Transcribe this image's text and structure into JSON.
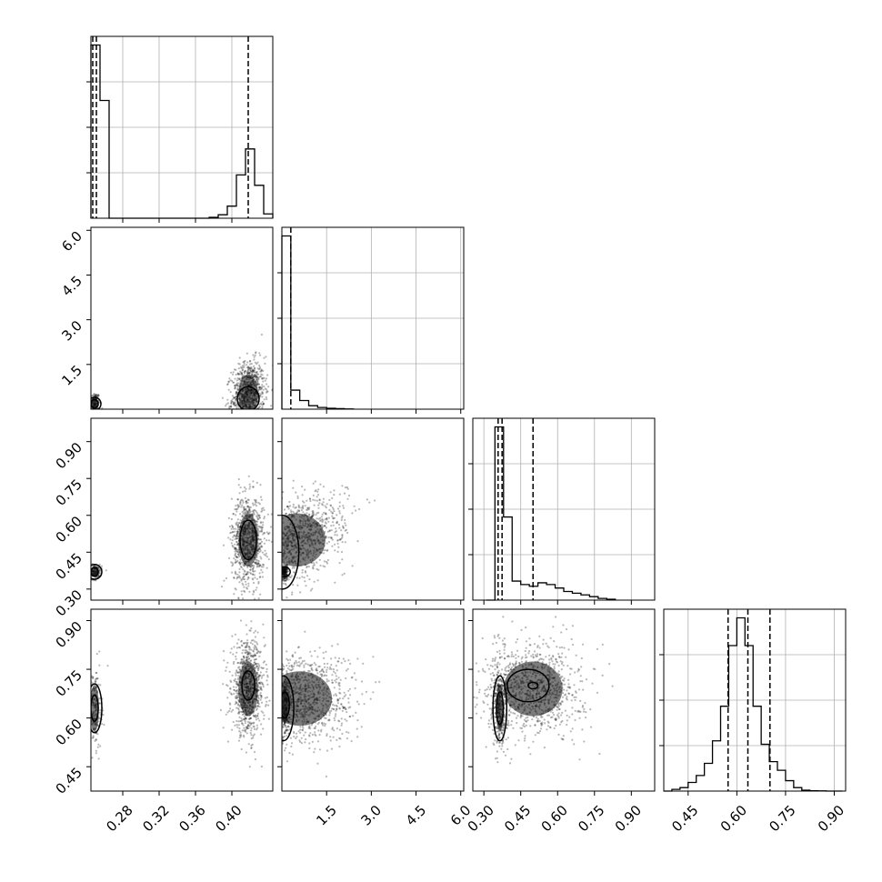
{
  "chart_data": {
    "type": "corner",
    "title": "",
    "parameters": [
      {
        "label": "",
        "range": [
          0.245,
          0.445
        ],
        "ticks": [
          "0.28",
          "0.32",
          "0.36",
          "0.40"
        ],
        "tick_values": [
          0.28,
          0.32,
          0.36,
          0.4
        ],
        "ytick_labels": []
      },
      {
        "label": "",
        "range": [
          0.0,
          6.1
        ],
        "ticks": [
          "1.5",
          "3.0",
          "4.5",
          "6.0"
        ],
        "tick_values": [
          1.5,
          3.0,
          4.5,
          6.0
        ],
        "ytick_labels": [
          "1.5",
          "3.0",
          "4.5",
          "6.0"
        ]
      },
      {
        "label": "",
        "range": [
          0.255,
          0.995
        ],
        "ticks": [
          "0.30",
          "0.45",
          "0.60",
          "0.75",
          "0.90"
        ],
        "tick_values": [
          0.3,
          0.45,
          0.6,
          0.75,
          0.9
        ],
        "ytick_labels": [
          "0.30",
          "0.45",
          "0.60",
          "0.75",
          "0.90"
        ]
      },
      {
        "label": "",
        "range": [
          0.375,
          0.935
        ],
        "ticks": [
          "0.45",
          "0.60",
          "0.75",
          "0.90"
        ],
        "tick_values": [
          0.45,
          0.6,
          0.75,
          0.9
        ],
        "ytick_labels": [
          "0.45",
          "0.60",
          "0.75",
          "0.90"
        ]
      }
    ],
    "histograms": [
      {
        "bin_edges": [
          0.245,
          0.255,
          0.265,
          0.275,
          0.285,
          0.295,
          0.305,
          0.315,
          0.325,
          0.335,
          0.345,
          0.355,
          0.365,
          0.375,
          0.385,
          0.395,
          0.405,
          0.415,
          0.425,
          0.435,
          0.445
        ],
        "counts": [
          1.0,
          0.68,
          0.0,
          0.0,
          0.0,
          0.0,
          0.0,
          0.0,
          0.0,
          0.0,
          0.0,
          0.0,
          0.0,
          0.005,
          0.02,
          0.07,
          0.25,
          0.4,
          0.19,
          0.025
        ],
        "quantiles": [
          0.247,
          0.251,
          0.418
        ],
        "grid": true
      },
      {
        "bin_edges": [
          0.0,
          0.3,
          0.6,
          0.9,
          1.2,
          1.5,
          1.8,
          2.1,
          2.4
        ],
        "counts": [
          1.0,
          0.11,
          0.05,
          0.02,
          0.01,
          0.005,
          0.003,
          0.001
        ],
        "quantiles": [
          0.3
        ],
        "grid": true
      },
      {
        "bin_edges": [
          0.31,
          0.345,
          0.38,
          0.415,
          0.45,
          0.485,
          0.52,
          0.555,
          0.59,
          0.625,
          0.66,
          0.695,
          0.73,
          0.765,
          0.8,
          0.835
        ],
        "counts": [
          0.0,
          1.0,
          0.48,
          0.11,
          0.09,
          0.08,
          0.1,
          0.09,
          0.07,
          0.05,
          0.04,
          0.03,
          0.02,
          0.01,
          0.005
        ],
        "quantiles": [
          0.358,
          0.374,
          0.5
        ],
        "grid": true
      },
      {
        "bin_edges": [
          0.375,
          0.4,
          0.425,
          0.45,
          0.475,
          0.5,
          0.525,
          0.55,
          0.575,
          0.6,
          0.625,
          0.65,
          0.675,
          0.7,
          0.725,
          0.75,
          0.775,
          0.8,
          0.825,
          0.85,
          0.875,
          0.9,
          0.925
        ],
        "counts": [
          0.0,
          0.01,
          0.02,
          0.05,
          0.09,
          0.16,
          0.29,
          0.49,
          0.84,
          1.0,
          0.84,
          0.49,
          0.27,
          0.17,
          0.12,
          0.06,
          0.02,
          0.005,
          0.002,
          0.001,
          0.0,
          0.0
        ],
        "quantiles": [
          0.573,
          0.634,
          0.702
        ],
        "grid": true
      }
    ],
    "pairs": [
      {
        "x": 0,
        "y": 1,
        "clusters": [
          {
            "cx": 0.249,
            "cy": 0.18,
            "sx": 0.003,
            "sy": 0.2,
            "n": 180,
            "rho": 0
          },
          {
            "cx": 0.418,
            "cy": 0.5,
            "sx": 0.009,
            "sy": 0.55,
            "n": 900,
            "rho": 0.15
          }
        ],
        "contours": [
          {
            "cx": 0.249,
            "cy": 0.18,
            "rx": 0.004,
            "ry": 0.14
          },
          {
            "cx": 0.249,
            "cy": 0.18,
            "rx": 0.007,
            "ry": 0.22
          },
          {
            "cx": 0.418,
            "cy": 0.35,
            "rx": 0.012,
            "ry": 0.4
          }
        ]
      },
      {
        "x": 0,
        "y": 2,
        "clusters": [
          {
            "cx": 0.249,
            "cy": 0.37,
            "sx": 0.004,
            "sy": 0.015,
            "n": 180,
            "rho": 0
          },
          {
            "cx": 0.418,
            "cy": 0.5,
            "sx": 0.009,
            "sy": 0.09,
            "n": 900,
            "rho": 0
          }
        ],
        "contours": [
          {
            "cx": 0.249,
            "cy": 0.37,
            "rx": 0.004,
            "ry": 0.018
          },
          {
            "cx": 0.249,
            "cy": 0.37,
            "rx": 0.008,
            "ry": 0.03
          },
          {
            "cx": 0.418,
            "cy": 0.5,
            "rx": 0.009,
            "ry": 0.08
          }
        ]
      },
      {
        "x": 0,
        "y": 3,
        "clusters": [
          {
            "cx": 0.249,
            "cy": 0.63,
            "sx": 0.004,
            "sy": 0.06,
            "n": 220,
            "rho": 0
          },
          {
            "cx": 0.418,
            "cy": 0.69,
            "sx": 0.009,
            "sy": 0.07,
            "n": 900,
            "rho": 0
          }
        ],
        "contours": [
          {
            "cx": 0.249,
            "cy": 0.63,
            "rx": 0.004,
            "ry": 0.04
          },
          {
            "cx": 0.249,
            "cy": 0.63,
            "rx": 0.008,
            "ry": 0.075
          },
          {
            "cx": 0.418,
            "cy": 0.7,
            "rx": 0.007,
            "ry": 0.045
          }
        ]
      },
      {
        "x": 1,
        "y": 2,
        "clusters": [
          {
            "cx": 0.08,
            "cy": 0.37,
            "sx": 0.06,
            "sy": 0.015,
            "n": 200,
            "rho": 0
          },
          {
            "cx": 0.5,
            "cy": 0.5,
            "sx": 0.8,
            "sy": 0.09,
            "n": 1100,
            "rho": 0.45
          }
        ],
        "contours": [
          {
            "cx": 0.02,
            "cy": 0.45,
            "rx": 0.55,
            "ry": 0.15
          },
          {
            "cx": 0.08,
            "cy": 0.37,
            "rx": 0.2,
            "ry": 0.02
          }
        ]
      },
      {
        "x": 1,
        "y": 3,
        "clusters": [
          {
            "cx": 0.1,
            "cy": 0.64,
            "sx": 0.08,
            "sy": 0.05,
            "n": 300,
            "rho": 0
          },
          {
            "cx": 0.6,
            "cy": 0.66,
            "sx": 0.9,
            "sy": 0.07,
            "n": 1100,
            "rho": 0
          }
        ],
        "contours": [
          {
            "cx": 0.05,
            "cy": 0.63,
            "rx": 0.35,
            "ry": 0.1
          },
          {
            "cx": 0.1,
            "cy": 0.64,
            "rx": 0.15,
            "ry": 0.04
          }
        ]
      },
      {
        "x": 2,
        "y": 3,
        "clusters": [
          {
            "cx": 0.365,
            "cy": 0.63,
            "sx": 0.012,
            "sy": 0.06,
            "n": 400,
            "rho": 0
          },
          {
            "cx": 0.5,
            "cy": 0.69,
            "sx": 0.1,
            "sy": 0.07,
            "n": 1000,
            "rho": 0
          }
        ],
        "contours": [
          {
            "cx": 0.365,
            "cy": 0.63,
            "rx": 0.014,
            "ry": 0.05
          },
          {
            "cx": 0.365,
            "cy": 0.63,
            "rx": 0.028,
            "ry": 0.1
          },
          {
            "cx": 0.48,
            "cy": 0.7,
            "rx": 0.085,
            "ry": 0.05
          },
          {
            "cx": 0.5,
            "cy": 0.7,
            "rx": 0.02,
            "ry": 0.01
          }
        ]
      }
    ]
  }
}
